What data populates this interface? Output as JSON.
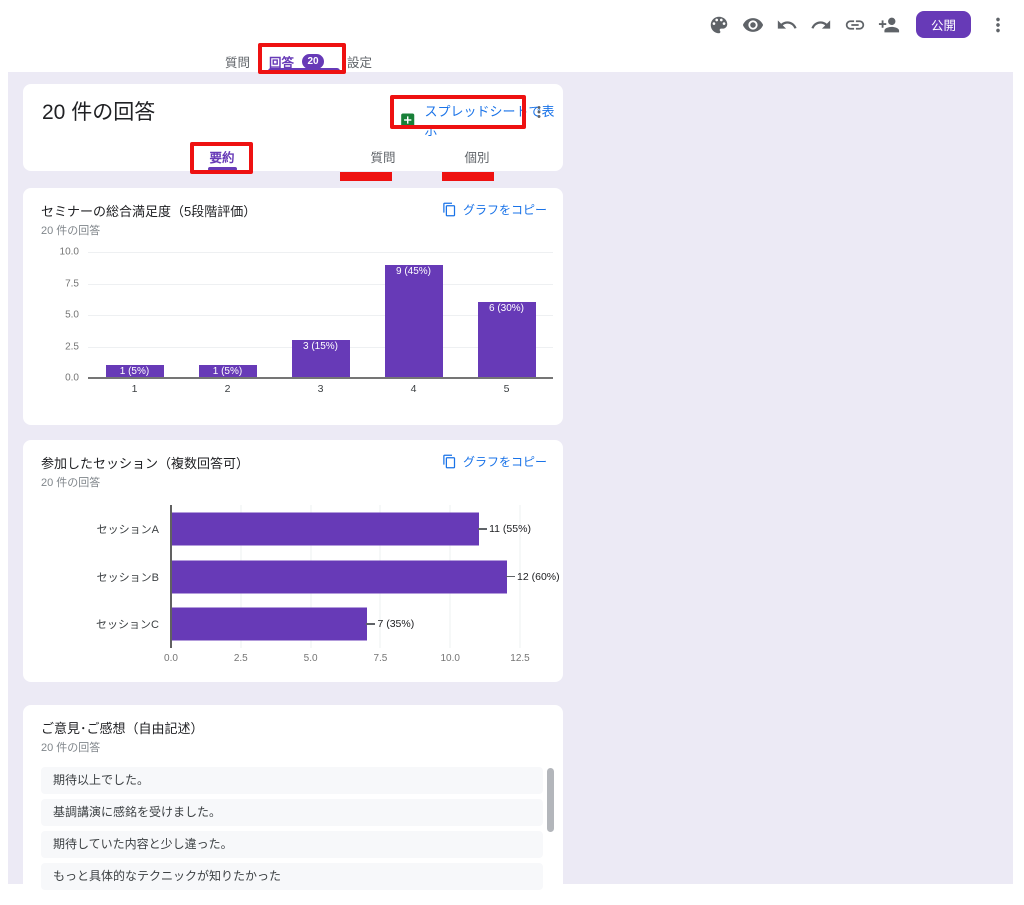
{
  "toolbar": {
    "publish_label": "公開",
    "icons": [
      "palette-icon",
      "preview-eye-icon",
      "undo-icon",
      "redo-icon",
      "copy-link-icon",
      "add-collaborator-icon",
      "more-options-icon"
    ]
  },
  "main_tabs": {
    "questions": "質問",
    "responses": "回答",
    "responses_count": "20",
    "settings": "設定"
  },
  "summary_card": {
    "title": "20 件の回答",
    "spreadsheet_button": "スプレッドシートで表示",
    "more_icon": "kebab-menu-icon",
    "tabs": {
      "summary": "要約",
      "question": "質問",
      "individual": "個別"
    }
  },
  "chart_data": [
    {
      "type": "bar",
      "title": "セミナーの総合満足度（5段階評価）",
      "subtitle": "20 件の回答",
      "copy_label": "グラフをコピー",
      "categories": [
        "1",
        "2",
        "3",
        "4",
        "5"
      ],
      "values": [
        1,
        1,
        3,
        9,
        6
      ],
      "labels": [
        "1 (5%)",
        "1 (5%)",
        "3 (15%)",
        "9 (45%)",
        "6 (30%)"
      ],
      "ylim": [
        0,
        10
      ],
      "yticks": [
        "0.0",
        "2.5",
        "5.0",
        "7.5",
        "10.0"
      ],
      "grid": true,
      "bar_color": "#673ab7"
    },
    {
      "type": "bar-horizontal",
      "title": "参加したセッション（複数回答可）",
      "subtitle": "20 件の回答",
      "copy_label": "グラフをコピー",
      "categories": [
        "セッションA",
        "セッションB",
        "セッションC"
      ],
      "values": [
        11,
        12,
        7
      ],
      "labels": [
        "11 (55%)",
        "12 (60%)",
        "7 (35%)"
      ],
      "xlim": [
        0,
        12.5
      ],
      "xticks": [
        "0.0",
        "2.5",
        "5.0",
        "7.5",
        "10.0",
        "12.5"
      ],
      "grid": true,
      "bar_color": "#673ab7"
    }
  ],
  "text_card": {
    "title": "ご意見･ご感想（自由記述）",
    "subtitle": "20 件の回答",
    "responses": [
      "期待以上でした。",
      "基調講演に感銘を受けました。",
      "期待していた内容と少し違った。",
      "もっと具体的なテクニックが知りたかった"
    ]
  },
  "colors": {
    "primary_purple": "#673ab7",
    "link_blue": "#1a73e8",
    "sheets_green": "#188038",
    "annotation_red": "#ee1111",
    "page_background": "#eceaf5",
    "bar_label_text": "#ffffff"
  }
}
